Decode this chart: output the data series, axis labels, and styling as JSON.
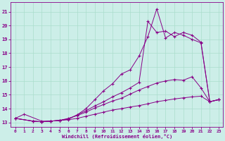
{
  "xlabel": "Windchill (Refroidissement éolien,°C)",
  "background_color": "#cceee8",
  "grid_color": "#aaddcc",
  "line_color": "#880088",
  "xlim": [
    -0.5,
    23.5
  ],
  "ylim": [
    12.7,
    21.7
  ],
  "yticks": [
    13,
    14,
    15,
    16,
    17,
    18,
    19,
    20,
    21
  ],
  "xticks": [
    0,
    1,
    2,
    3,
    4,
    5,
    6,
    7,
    8,
    9,
    10,
    11,
    12,
    13,
    14,
    15,
    16,
    17,
    18,
    19,
    20,
    21,
    22,
    23
  ],
  "series": [
    {
      "x": [
        0,
        1,
        3,
        4,
        5,
        6,
        7,
        8,
        9,
        10,
        11,
        12,
        13,
        14,
        15,
        16,
        17,
        18,
        19,
        20,
        21,
        22,
        23
      ],
      "y": [
        13.3,
        13.6,
        13.1,
        13.1,
        13.15,
        13.25,
        13.55,
        14.0,
        14.65,
        15.3,
        15.8,
        16.5,
        16.8,
        17.8,
        19.2,
        21.2,
        19.1,
        19.5,
        19.3,
        19.0,
        18.75,
        14.5,
        14.65
      ]
    },
    {
      "x": [
        0,
        2,
        3,
        4,
        5,
        6,
        7,
        8,
        9,
        10,
        11,
        12,
        13,
        14,
        15,
        16,
        17,
        18,
        19,
        20,
        21,
        22,
        23
      ],
      "y": [
        13.3,
        13.1,
        13.05,
        13.1,
        13.15,
        13.25,
        13.55,
        13.85,
        14.2,
        14.5,
        14.85,
        15.15,
        15.5,
        15.9,
        20.3,
        19.5,
        19.6,
        19.2,
        19.5,
        19.3,
        18.8,
        14.5,
        14.65
      ]
    },
    {
      "x": [
        0,
        2,
        3,
        4,
        5,
        6,
        7,
        8,
        9,
        10,
        11,
        12,
        13,
        14,
        15,
        16,
        17,
        18,
        19,
        20,
        21,
        22,
        23
      ],
      "y": [
        13.3,
        13.1,
        13.05,
        13.1,
        13.15,
        13.3,
        13.5,
        13.75,
        14.05,
        14.3,
        14.55,
        14.75,
        15.05,
        15.35,
        15.6,
        15.85,
        16.0,
        16.1,
        16.05,
        16.3,
        15.5,
        14.5,
        14.65
      ]
    },
    {
      "x": [
        0,
        2,
        3,
        4,
        5,
        6,
        7,
        8,
        9,
        10,
        11,
        12,
        13,
        14,
        15,
        16,
        17,
        18,
        19,
        20,
        21,
        22,
        23
      ],
      "y": [
        13.3,
        13.1,
        13.05,
        13.1,
        13.15,
        13.2,
        13.3,
        13.45,
        13.6,
        13.75,
        13.9,
        14.0,
        14.12,
        14.22,
        14.35,
        14.5,
        14.6,
        14.7,
        14.78,
        14.85,
        14.9,
        14.5,
        14.65
      ]
    }
  ]
}
